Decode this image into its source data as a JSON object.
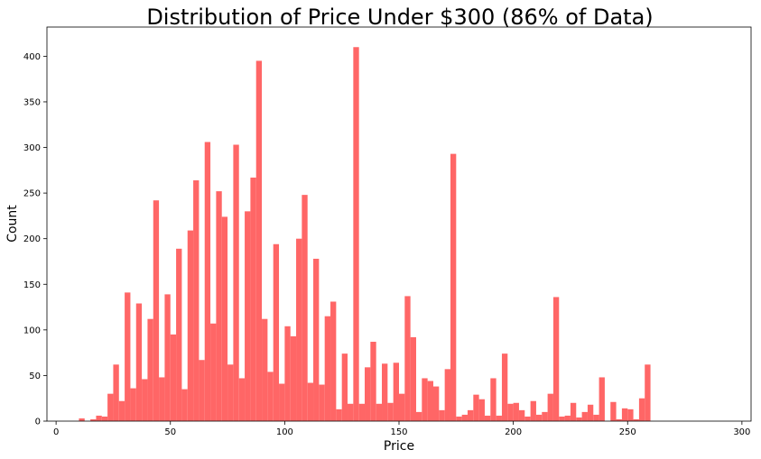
{
  "chart_data": {
    "type": "bar",
    "title": "Distribution of Price Under $300 (86% of Data)",
    "xlabel": "Price",
    "ylabel": "Count",
    "xlim": [
      -4,
      304
    ],
    "ylim": [
      0,
      432
    ],
    "bar_color": "#ff6666",
    "grid": false,
    "legend": "none",
    "xticks": [
      0,
      50,
      100,
      150,
      200,
      250,
      300
    ],
    "yticks": [
      0,
      50,
      100,
      150,
      200,
      250,
      300,
      350,
      400
    ],
    "bin_start": 10,
    "bin_width": 2.5,
    "values": [
      3,
      0,
      2,
      6,
      5,
      30,
      62,
      22,
      141,
      36,
      129,
      46,
      112,
      242,
      48,
      139,
      95,
      189,
      35,
      209,
      264,
      67,
      306,
      107,
      252,
      224,
      62,
      303,
      47,
      230,
      267,
      395,
      112,
      54,
      194,
      41,
      104,
      93,
      200,
      248,
      42,
      178,
      40,
      115,
      131,
      13,
      74,
      19,
      410,
      19,
      59,
      87,
      19,
      63,
      20,
      64,
      30,
      137,
      92,
      10,
      47,
      44,
      38,
      12,
      57,
      293,
      5,
      7,
      12,
      29,
      24,
      6,
      47,
      6,
      74,
      19,
      20,
      12,
      5,
      22,
      7,
      10,
      30,
      136,
      5,
      6,
      20,
      4,
      10,
      18,
      7,
      48,
      0,
      21,
      2,
      14,
      13,
      2,
      25,
      62
    ]
  }
}
